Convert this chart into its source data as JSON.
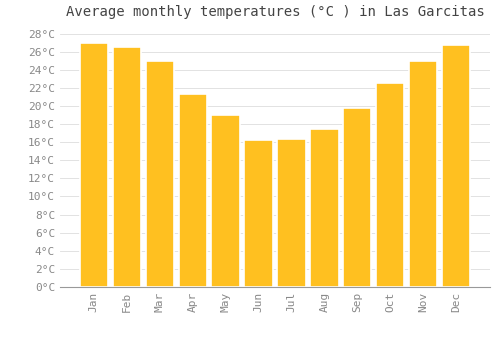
{
  "title": "Average monthly temperatures (°C ) in Las Garcitas",
  "months": [
    "Jan",
    "Feb",
    "Mar",
    "Apr",
    "May",
    "Jun",
    "Jul",
    "Aug",
    "Sep",
    "Oct",
    "Nov",
    "Dec"
  ],
  "values": [
    27.0,
    26.5,
    25.0,
    21.3,
    19.0,
    16.2,
    16.3,
    17.5,
    19.8,
    22.5,
    25.0,
    26.7
  ],
  "bar_color": "#FFC020",
  "bar_edge_color": "#FFFFFF",
  "background_color": "#FFFFFF",
  "grid_color": "#DDDDDD",
  "ylim": [
    0,
    29
  ],
  "ytick_step": 2,
  "title_fontsize": 10,
  "tick_fontsize": 8,
  "tick_color": "#888888",
  "title_color": "#444444",
  "bar_width": 0.85
}
